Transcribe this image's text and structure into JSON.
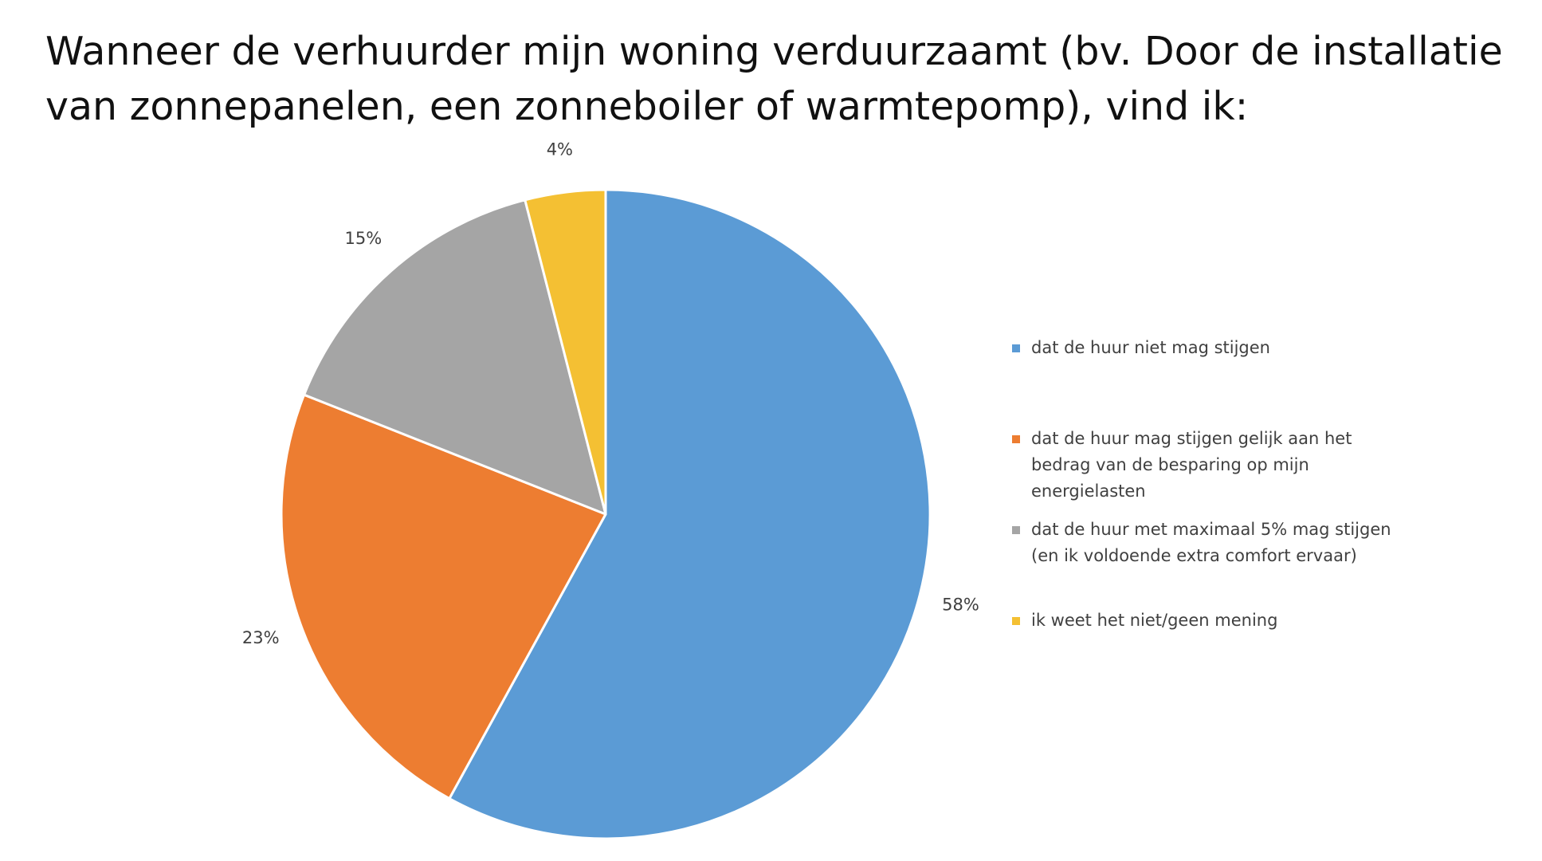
{
  "title": "Wanneer de verhuurder mijn woning verduurzaamt (bv. Door de installatie van zonnepanelen, een zonneboiler of warmtepomp), vind ik:",
  "chart_data": {
    "type": "pie",
    "title": "Wanneer de verhuurder mijn woning verduurzaamt (bv. Door de installatie van zonnepanelen, een zonneboiler of warmtepomp), vind ik:",
    "slices": [
      {
        "label": "dat de huur niet mag stijgen",
        "value": 58,
        "value_label": "58%",
        "color": "#5B9BD5"
      },
      {
        "label": "dat de huur mag stijgen gelijk aan het bedrag van de besparing op mijn energielasten",
        "value": 23,
        "value_label": "23%",
        "color": "#ED7D31"
      },
      {
        "label": "dat de huur met maximaal 5% mag stijgen (en ik voldoende extra comfort ervaar)",
        "value": 15,
        "value_label": "15%",
        "color": "#A5A5A5"
      },
      {
        "label": "ik weet het niet/geen mening",
        "value": 4,
        "value_label": "4%",
        "color": "#F4C033"
      }
    ],
    "start_angle": "12 o'clock",
    "direction": "clockwise",
    "legend_position": "right"
  },
  "legend": {
    "items": [
      {
        "label": "dat de huur niet mag stijgen",
        "color": "#5B9BD5"
      },
      {
        "label": "dat de huur mag stijgen gelijk aan het bedrag van de besparing op mijn energielasten",
        "color": "#ED7D31"
      },
      {
        "label": "dat de huur met maximaal 5% mag stijgen (en ik voldoende extra comfort ervaar)",
        "color": "#A5A5A5"
      },
      {
        "label": "ik weet het niet/geen mening",
        "color": "#F4C033"
      }
    ]
  }
}
